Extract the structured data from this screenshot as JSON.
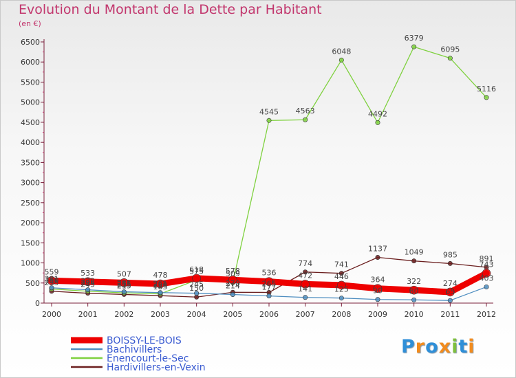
{
  "chart_data": {
    "type": "line",
    "title": "Evolution du Montant de la Dette par Habitant",
    "subtitle": "(en €)",
    "x": [
      "2000",
      "2001",
      "2002",
      "2003",
      "2004",
      "2005",
      "2006",
      "2007",
      "2008",
      "2009",
      "2010",
      "2011",
      "2012"
    ],
    "ylim": [
      0,
      6500
    ],
    "yticks": [
      0,
      500,
      1000,
      1500,
      2000,
      2500,
      3000,
      3500,
      4000,
      4500,
      5000,
      5500,
      6000,
      6500
    ],
    "grid": false,
    "legend_position": "bottom-left",
    "series": [
      {
        "name": "Hardivillers-en-Vexin",
        "color": "#6b1f1f",
        "width": 1.3,
        "values": [
          295,
          245,
          215,
          185,
          150,
          270,
          265,
          774,
          741,
          1137,
          1049,
          985,
          891
        ]
      },
      {
        "name": "Enencourt-le-Sec",
        "color": "#7fd13f",
        "width": 1.3,
        "values": [
          350,
          295,
          255,
          230,
          575,
          509,
          4545,
          4563,
          6048,
          4492,
          6379,
          6095,
          5116
        ]
      },
      {
        "name": "Bachivillers",
        "color": "#4f8ec0",
        "width": 1.3,
        "values": [
          381,
          332,
          281,
          261,
          245,
          214,
          177,
          141,
          125,
          90,
          80,
          65,
          403
        ]
      },
      {
        "name": "BOISSY-LE-BOIS",
        "color": "#ee0000",
        "width": 9,
        "values": [
          559,
          533,
          507,
          478,
          618,
          578,
          536,
          472,
          446,
          364,
          322,
          274,
          743
        ]
      }
    ],
    "data_labels": [
      {
        "x": "2000",
        "text": "559",
        "series": "BOISSY-LE-BOIS"
      },
      {
        "x": "2000",
        "text": "381",
        "series": "Bachivillers"
      },
      {
        "x": "2000",
        "text": "350",
        "series": "Enencourt-le-Sec"
      },
      {
        "x": "2000",
        "text": "295",
        "series": "Hardivillers-en-Vexin"
      },
      {
        "x": "2001",
        "text": "533",
        "series": "BOISSY-LE-BOIS"
      },
      {
        "x": "2001",
        "text": "332",
        "series": "Bachivillers"
      },
      {
        "x": "2001",
        "text": "295",
        "series": "Enencourt-le-Sec"
      },
      {
        "x": "2001",
        "text": "245",
        "series": "Hardivillers-en-Vexin"
      },
      {
        "x": "2002",
        "text": "507",
        "series": "BOISSY-LE-BOIS"
      },
      {
        "x": "2002",
        "text": "281",
        "series": "Bachivillers"
      },
      {
        "x": "2002",
        "text": "255",
        "series": "Enencourt-le-Sec"
      },
      {
        "x": "2002",
        "text": "215",
        "series": "Hardivillers-en-Vexin"
      },
      {
        "x": "2003",
        "text": "478",
        "series": "BOISSY-LE-BOIS"
      },
      {
        "x": "2003",
        "text": "261",
        "series": "Bachivillers"
      },
      {
        "x": "2003",
        "text": "230",
        "series": "Enencourt-le-Sec"
      },
      {
        "x": "2003",
        "text": "185",
        "series": "Hardivillers-en-Vexin"
      },
      {
        "x": "2004",
        "text": "618",
        "series": "BOISSY-LE-BOIS"
      },
      {
        "x": "2004",
        "text": "575",
        "series": "Enencourt-le-Sec"
      },
      {
        "x": "2004",
        "text": "245",
        "series": "Bachivillers"
      },
      {
        "x": "2004",
        "text": "150",
        "series": "Hardivillers-en-Vexin"
      },
      {
        "x": "2005",
        "text": "578",
        "series": "BOISSY-LE-BOIS"
      },
      {
        "x": "2005",
        "text": "509",
        "series": "Enencourt-le-Sec"
      },
      {
        "x": "2005",
        "text": "270",
        "series": "Hardivillers-en-Vexin"
      },
      {
        "x": "2005",
        "text": "214",
        "series": "Bachivillers"
      },
      {
        "x": "2006",
        "text": "4545",
        "series": "Enencourt-le-Sec"
      },
      {
        "x": "2006",
        "text": "536",
        "series": "BOISSY-LE-BOIS"
      },
      {
        "x": "2006",
        "text": "265",
        "series": "Hardivillers-en-Vexin"
      },
      {
        "x": "2006",
        "text": "177",
        "series": "Bachivillers"
      },
      {
        "x": "2007",
        "text": "4563",
        "series": "Enencourt-le-Sec"
      },
      {
        "x": "2007",
        "text": "774",
        "series": "Hardivillers-en-Vexin"
      },
      {
        "x": "2007",
        "text": "472",
        "series": "BOISSY-LE-BOIS"
      },
      {
        "x": "2007",
        "text": "141",
        "series": "Bachivillers"
      },
      {
        "x": "2008",
        "text": "6048",
        "series": "Enencourt-le-Sec"
      },
      {
        "x": "2008",
        "text": "741",
        "series": "Hardivillers-en-Vexin"
      },
      {
        "x": "2008",
        "text": "446",
        "series": "BOISSY-LE-BOIS"
      },
      {
        "x": "2008",
        "text": "125",
        "series": "Bachivillers"
      },
      {
        "x": "2009",
        "text": "4492",
        "series": "Enencourt-le-Sec"
      },
      {
        "x": "2009",
        "text": "1137",
        "series": "Hardivillers-en-Vexin"
      },
      {
        "x": "2009",
        "text": "364",
        "series": "BOISSY-LE-BOIS"
      },
      {
        "x": "2009",
        "text": "90",
        "series": "Bachivillers"
      },
      {
        "x": "2010",
        "text": "6379",
        "series": "Enencourt-le-Sec"
      },
      {
        "x": "2010",
        "text": "1049",
        "series": "Hardivillers-en-Vexin"
      },
      {
        "x": "2010",
        "text": "322",
        "series": "BOISSY-LE-BOIS"
      },
      {
        "x": "2010",
        "text": "80",
        "series": "Bachivillers"
      },
      {
        "x": "2011",
        "text": "6095",
        "series": "Enencourt-le-Sec"
      },
      {
        "x": "2011",
        "text": "985",
        "series": "Hardivillers-en-Vexin"
      },
      {
        "x": "2011",
        "text": "274",
        "series": "BOISSY-LE-BOIS"
      },
      {
        "x": "2011",
        "text": "65",
        "series": "Bachivillers"
      },
      {
        "x": "2012",
        "text": "5116",
        "series": "Enencourt-le-Sec"
      },
      {
        "x": "2012",
        "text": "891",
        "series": "Hardivillers-en-Vexin"
      },
      {
        "x": "2012",
        "text": "743",
        "series": "BOISSY-LE-BOIS"
      },
      {
        "x": "2012",
        "text": "403",
        "series": "Bachivillers"
      }
    ],
    "legend": [
      {
        "name": "BOISSY-LE-BOIS",
        "color": "#ee0000",
        "text_color": "#3a5bd1"
      },
      {
        "name": "Bachivillers",
        "color": "#4f8ec0",
        "text_color": "#3a5bd1"
      },
      {
        "name": "Enencourt-le-Sec",
        "color": "#7fd13f",
        "text_color": "#3a5bd1"
      },
      {
        "name": "Hardivillers-en-Vexin",
        "color": "#6b1f1f",
        "text_color": "#3a5bd1"
      }
    ]
  },
  "logo": {
    "letters": [
      "P",
      "r",
      "o",
      "x",
      "i",
      "t",
      "i"
    ],
    "colors": [
      "#2f8fd8",
      "#f28c1e",
      "#2f8fd8",
      "#f28c1e",
      "#7fbf3f",
      "#2f8fd8",
      "#f28c1e"
    ]
  }
}
